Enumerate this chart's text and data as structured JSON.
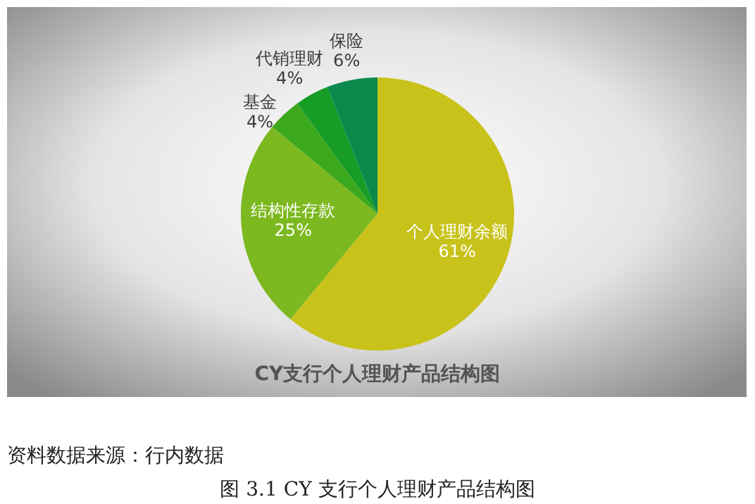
{
  "chart_data": {
    "type": "pie",
    "title": "CY支行个人理财产品结构图",
    "categories": [
      "个人理财余额",
      "结构性存款",
      "基金",
      "代销理财",
      "保险"
    ],
    "values": [
      61,
      25,
      4,
      4,
      6
    ],
    "colors": [
      "#c8c21a",
      "#7cb81f",
      "#3ca81c",
      "#179d25",
      "#0b8a4c"
    ],
    "value_labels": [
      "61%",
      "25%",
      "4%",
      "4%",
      "6%"
    ],
    "annotations": [
      "资料数据来源：行内数据",
      "图 3.1  CY 支行个人理财产品结构图"
    ]
  }
}
